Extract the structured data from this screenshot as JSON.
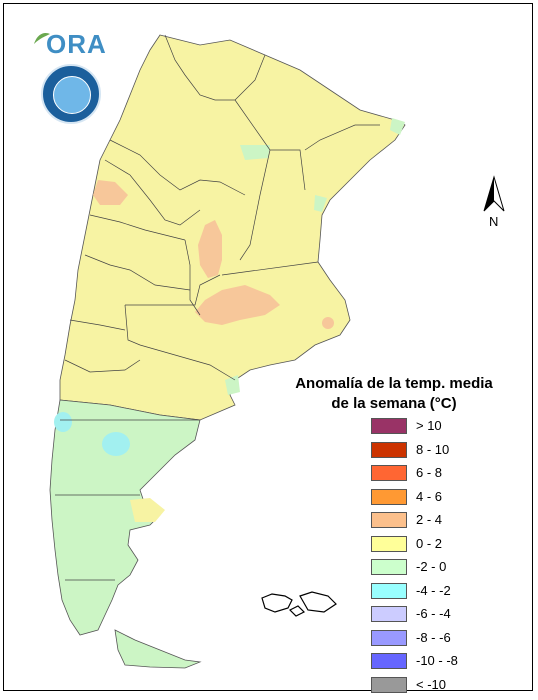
{
  "map": {
    "title_line1": "Anomalía de la temp. media",
    "title_line2": "de la semana (°C)",
    "north_label": "N",
    "logo_text": "ORA",
    "legend": [
      {
        "label": "> 10",
        "color": "#993366"
      },
      {
        "label": "8 - 10",
        "color": "#cc3300"
      },
      {
        "label": "6 - 8",
        "color": "#ff6633"
      },
      {
        "label": "4 - 6",
        "color": "#ff9933"
      },
      {
        "label": "2 - 4",
        "color": "#fcc08c"
      },
      {
        "label": "0 - 2",
        "color": "#ffff99"
      },
      {
        "label": "-2 - 0",
        "color": "#ccffcc"
      },
      {
        "label": "-4 - -2",
        "color": "#99ffff"
      },
      {
        "label": "-6 - -4",
        "color": "#ccccff"
      },
      {
        "label": "-8 - -6",
        "color": "#9999ff"
      },
      {
        "label": "-10 - -8",
        "color": "#6666ff"
      },
      {
        "label": "< -10",
        "color": "#999999"
      }
    ],
    "region_colors": {
      "warm": "#f7f3a3",
      "cool": "#ccf5c5",
      "hot": "#f7c79a",
      "cold": "#a2f0f0"
    }
  }
}
